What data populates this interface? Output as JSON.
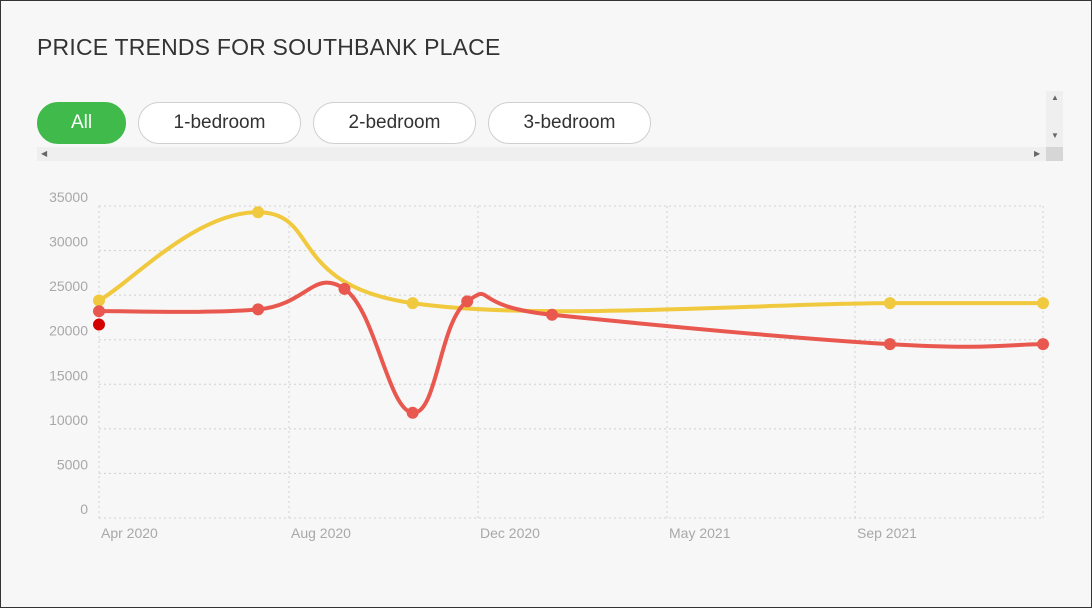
{
  "page": {
    "title": "PRICE TRENDS FOR SOUTHBANK PLACE"
  },
  "tabs": [
    {
      "label": "All",
      "active": true
    },
    {
      "label": "1-bedroom",
      "active": false
    },
    {
      "label": "2-bedroom",
      "active": false
    },
    {
      "label": "3-bedroom",
      "active": false
    }
  ],
  "colors": {
    "active_tab": "#3fba4b",
    "series_red": "#e8584f",
    "series_yellow": "#f0c93e",
    "extra_point": "#d40000",
    "grid": "#d0d0d0"
  },
  "chart_data": {
    "type": "line",
    "title": "PRICE TRENDS FOR SOUTHBANK PLACE",
    "xlabel": "",
    "ylabel": "",
    "x_ticks": [
      "Apr 2020",
      "Aug 2020",
      "Dec 2020",
      "May 2021",
      "Sep 2021"
    ],
    "ylim": [
      0,
      35000
    ],
    "y_ticks": [
      0,
      5000,
      10000,
      15000,
      20000,
      25000,
      30000,
      35000
    ],
    "grid": true,
    "legend": "none",
    "series": [
      {
        "color": "#e8584f",
        "points": [
          {
            "x": "2020-04-01",
            "y": 23200
          },
          {
            "x": "2020-07-15",
            "y": 23400
          },
          {
            "x": "2020-09-10",
            "y": 25700
          },
          {
            "x": "2020-10-25",
            "y": 11800
          },
          {
            "x": "2020-11-30",
            "y": 24300
          },
          {
            "x": "2021-01-25",
            "y": 22800
          },
          {
            "x": "2021-09-05",
            "y": 19500
          },
          {
            "x": "2021-12-15",
            "y": 19500
          }
        ]
      },
      {
        "color": "#f0c93e",
        "points": [
          {
            "x": "2020-04-01",
            "y": 24400
          },
          {
            "x": "2020-07-15",
            "y": 34300
          },
          {
            "x": "2020-10-25",
            "y": 24100
          },
          {
            "x": "2021-09-05",
            "y": 24100
          },
          {
            "x": "2021-12-15",
            "y": 24100
          }
        ]
      }
    ],
    "extra_points": [
      {
        "x": "2020-04-01",
        "y": 21700,
        "color": "#d40000"
      }
    ]
  }
}
